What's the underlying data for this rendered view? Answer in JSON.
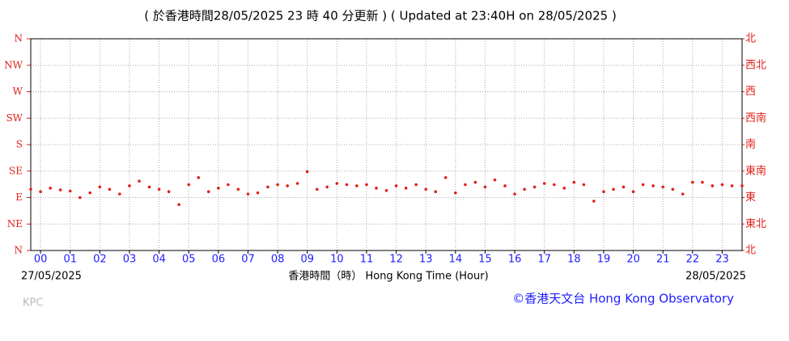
{
  "chart_data": {
    "type": "scatter",
    "title": "( 於香港時間28/05/2025 23 時 40 分更新 ) ( Updated at 23:40H on 28/05/2025 )",
    "x_label": "香港時間（時） Hong Kong Time (Hour)",
    "start_date": "27/05/2025",
    "end_date": "28/05/2025",
    "station": "KPC",
    "credit": "©香港天文台 Hong Kong Observatory",
    "color": "#e0201a",
    "grid": true,
    "xlim": [
      -0.33,
      23.67
    ],
    "xticks": [
      {
        "value": 0,
        "label": "00"
      },
      {
        "value": 1,
        "label": "01"
      },
      {
        "value": 2,
        "label": "02"
      },
      {
        "value": 3,
        "label": "03"
      },
      {
        "value": 4,
        "label": "04"
      },
      {
        "value": 5,
        "label": "05"
      },
      {
        "value": 6,
        "label": "06"
      },
      {
        "value": 7,
        "label": "07"
      },
      {
        "value": 8,
        "label": "08"
      },
      {
        "value": 9,
        "label": "09"
      },
      10,
      11,
      12,
      13,
      14,
      15,
      16,
      17,
      18,
      19,
      20,
      21,
      22,
      23
    ],
    "ylim": [
      0,
      360
    ],
    "yticks": [
      {
        "value": 0,
        "label": "N"
      },
      {
        "value": 45,
        "label": "NE"
      },
      {
        "value": 90,
        "label": "E"
      },
      {
        "value": 135,
        "label": "SE"
      },
      {
        "value": 180,
        "label": "S"
      },
      {
        "value": 225,
        "label": "SW"
      },
      {
        "value": 270,
        "label": "W"
      },
      {
        "value": 315,
        "label": "NW"
      },
      {
        "value": 360,
        "label": "N"
      }
    ],
    "y2lim": [
      0,
      360
    ],
    "y2ticks": [
      {
        "value": 0,
        "label": "北"
      },
      {
        "value": 45,
        "label": "東北"
      },
      {
        "value": 90,
        "label": "東"
      },
      {
        "value": 135,
        "label": "東南"
      },
      {
        "value": 180,
        "label": "南"
      },
      {
        "value": 225,
        "label": "西南"
      },
      {
        "value": 270,
        "label": "西"
      },
      {
        "value": 315,
        "label": "西北"
      },
      {
        "value": 360,
        "label": "北"
      }
    ],
    "x": [
      -0.33,
      0,
      0.33,
      0.67,
      1,
      1.33,
      1.67,
      2,
      2.33,
      2.67,
      3,
      3.33,
      3.67,
      4,
      4.33,
      4.67,
      5,
      5.33,
      5.67,
      6,
      6.33,
      6.67,
      7,
      7.33,
      7.67,
      8,
      8.33,
      8.67,
      9,
      9.33,
      9.67,
      10,
      10.33,
      10.67,
      11,
      11.33,
      11.67,
      12,
      12.33,
      12.67,
      13,
      13.33,
      13.67,
      14,
      14.33,
      14.67,
      15,
      15.33,
      15.67,
      16,
      16.33,
      16.67,
      17,
      17.33,
      17.67,
      18,
      18.33,
      18.67,
      19,
      19.33,
      19.67,
      20,
      20.33,
      20.67,
      21,
      21.33,
      21.67,
      22,
      22.33,
      22.67,
      23,
      23.33,
      23.67
    ],
    "values": [
      104,
      100,
      106,
      103,
      101,
      90,
      98,
      108,
      104,
      96,
      110,
      118,
      108,
      104,
      100,
      78,
      112,
      124,
      100,
      106,
      112,
      104,
      96,
      98,
      108,
      112,
      110,
      114,
      134,
      104,
      108,
      114,
      112,
      110,
      112,
      106,
      102,
      110,
      106,
      112,
      104,
      100,
      124,
      98,
      112,
      116,
      108,
      120,
      110,
      96,
      104,
      108,
      114,
      112,
      106,
      116,
      112,
      84,
      100,
      104,
      108,
      100,
      112,
      110,
      108,
      104,
      96,
      116,
      116,
      110,
      112,
      110,
      110
    ]
  }
}
